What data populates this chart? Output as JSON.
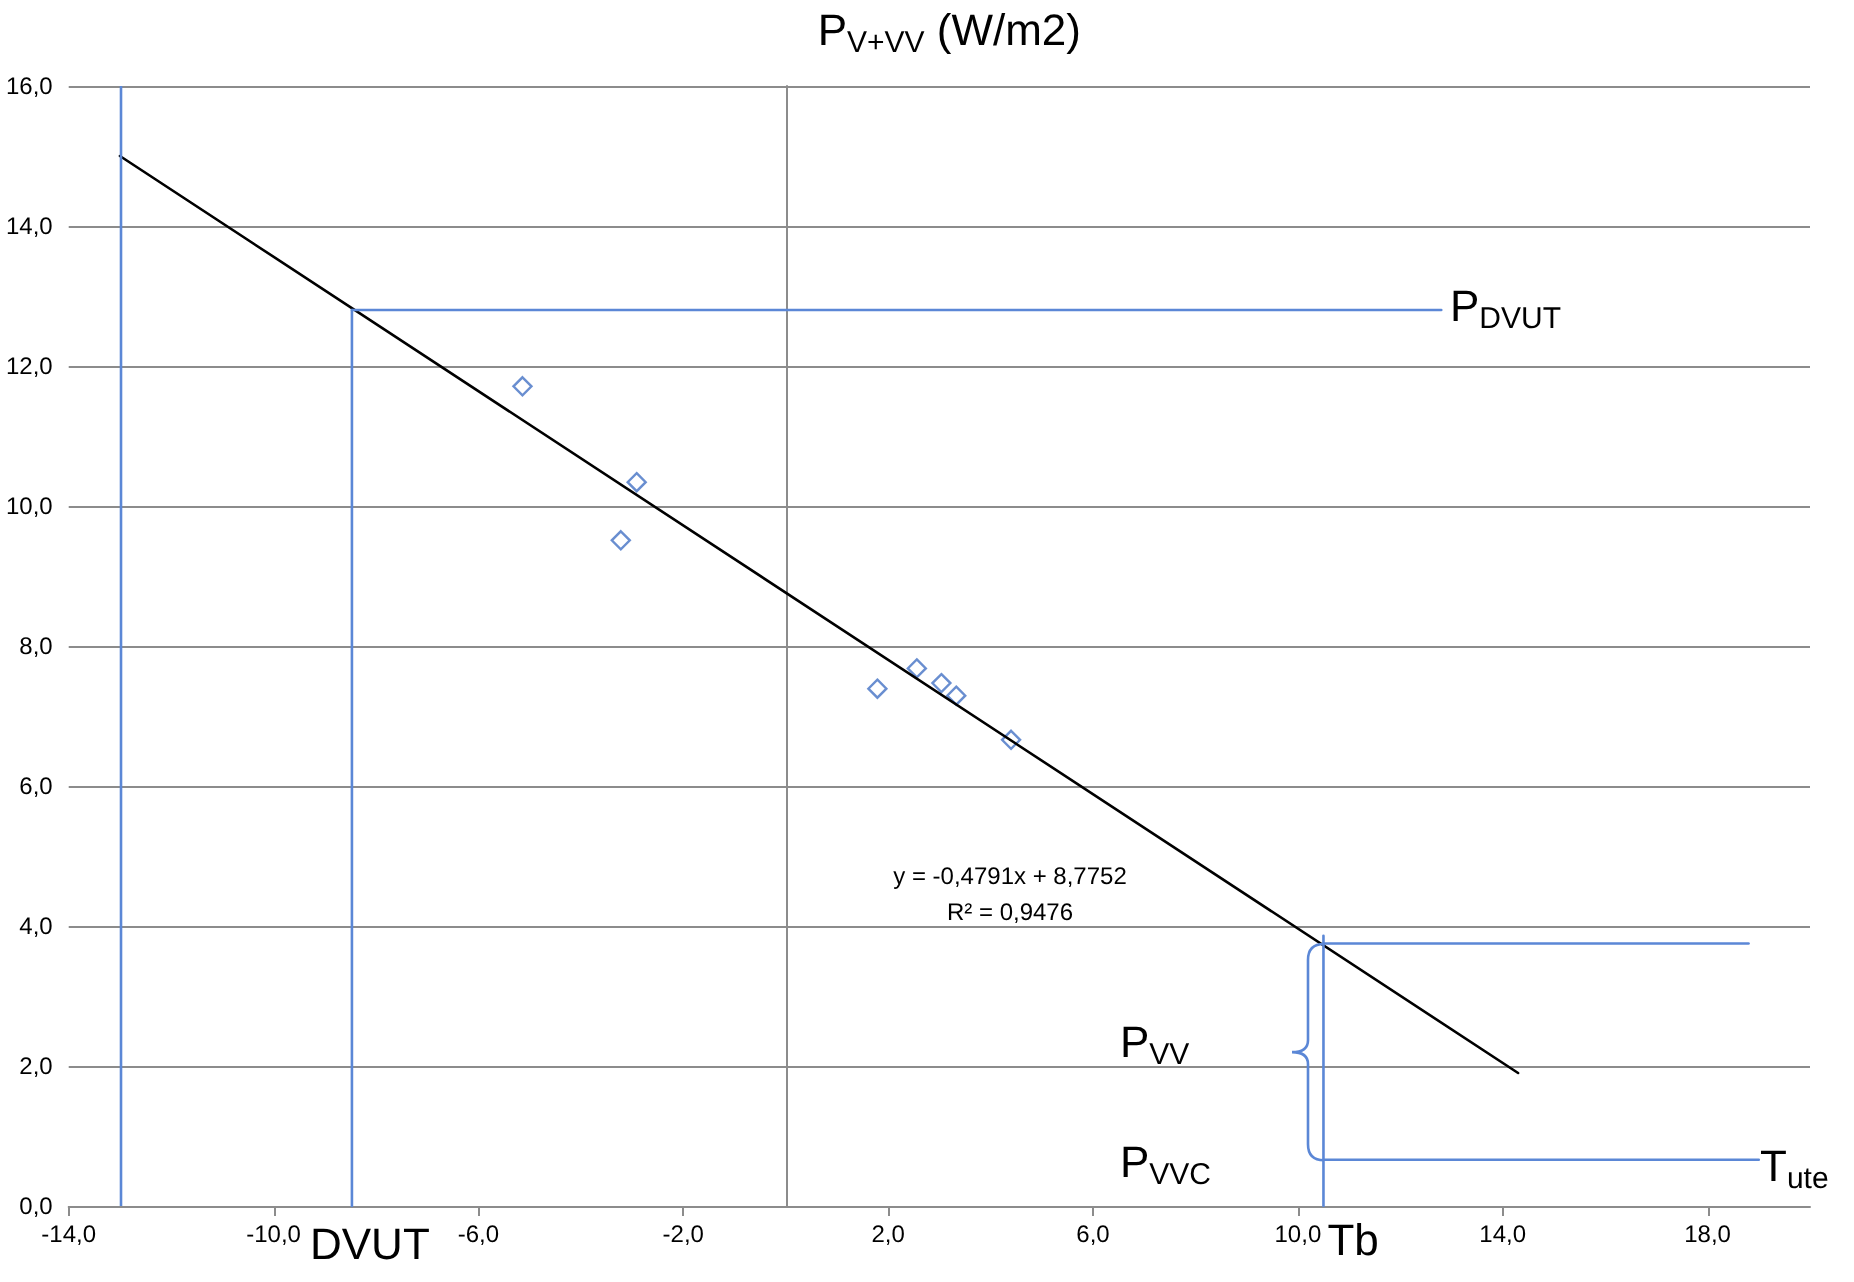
{
  "chart_data": {
    "type": "scatter",
    "ylabel": "P$_{V+VV}$ (W/m2)",
    "xlim": [
      -14,
      20
    ],
    "ylim": [
      0,
      16
    ],
    "xticks": [
      {
        "value": -14,
        "label": "-14,0"
      },
      {
        "value": -10,
        "label": "-10,0"
      },
      {
        "value": -6,
        "label": "-6,0"
      },
      {
        "value": -2,
        "label": "-2,0"
      },
      {
        "value": 2,
        "label": "2,0"
      },
      {
        "value": 6,
        "label": "6,0"
      },
      {
        "value": 10,
        "label": "10,0"
      },
      {
        "value": 14,
        "label": "14,0"
      },
      {
        "value": 18,
        "label": "18,0"
      }
    ],
    "yticks": [
      {
        "value": 0,
        "label": "0,0"
      },
      {
        "value": 2,
        "label": "2,0"
      },
      {
        "value": 4,
        "label": "4,0"
      },
      {
        "value": 6,
        "label": "6,0"
      },
      {
        "value": 8,
        "label": "8,0"
      },
      {
        "value": 10,
        "label": "10,0"
      },
      {
        "value": 12,
        "label": "12,0"
      },
      {
        "value": 14,
        "label": "14,0"
      },
      {
        "value": 16,
        "label": "16,0"
      }
    ],
    "grid": "y",
    "series": [
      {
        "marker": "diamond",
        "color": "#4472c4",
        "x": [
          -5.14,
          -2.91,
          -3.22,
          1.79,
          2.56,
          3.04,
          3.33,
          4.4
        ],
        "values": [
          11.71,
          10.34,
          9.51,
          7.39,
          7.68,
          7.47,
          7.29,
          6.66
        ]
      },
      {
        "type": "line",
        "marker": "none",
        "color": "#000000",
        "x": [
          -13,
          14.3
        ],
        "values": [
          15.0,
          1.9
        ]
      },
      {
        "type": "line",
        "marker": "none",
        "color": "#5b87d6",
        "x": [
          -8.47,
          -8.47
        ],
        "values": [
          0,
          12.8
        ]
      },
      {
        "type": "line",
        "marker": "none",
        "color": "#5b87d6",
        "x": [
          -8.47,
          12.8
        ],
        "values": [
          12.8,
          12.8
        ]
      },
      {
        "type": "line",
        "marker": "none",
        "color": "#5b87d6",
        "x": [
          10.5,
          10.5
        ],
        "values": [
          0,
          3.86
        ]
      },
      {
        "type": "line",
        "marker": "none",
        "color": "#5b87d6",
        "x": [
          10.5,
          18.8
        ],
        "values": [
          3.75,
          3.75
        ]
      },
      {
        "type": "line",
        "marker": "none",
        "color": "#5b87d6",
        "x": [
          10.5,
          19.0
        ],
        "values": [
          0.66,
          0.66
        ]
      }
    ],
    "ref_lines": [
      {
        "axis": "x",
        "value": -13,
        "color": "#5b87d6"
      }
    ],
    "annotations": [
      "P$_{DVUT}$",
      "P$_{VV}$",
      "P$_{VVC}$",
      "T$_{ute}$",
      {
        "text": "Tb",
        "x": 10.5,
        "y": 0
      },
      "DVUT",
      "y = -0,4791x + 8,7752",
      "R² = 0,9476"
    ]
  }
}
